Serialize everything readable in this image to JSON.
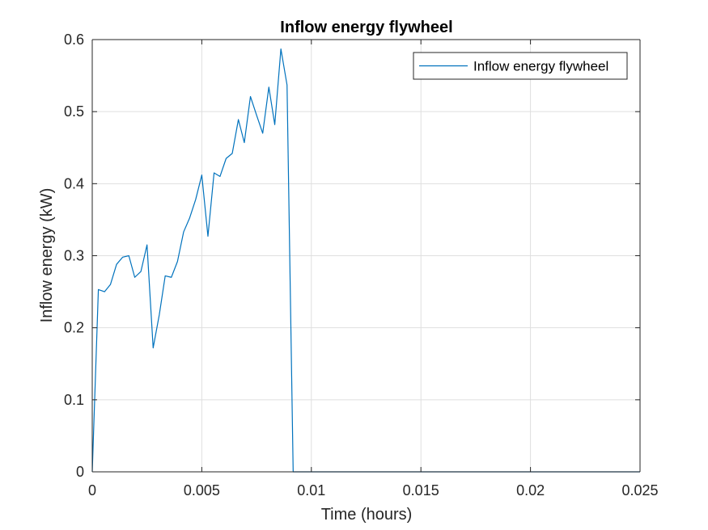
{
  "chart_data": {
    "type": "line",
    "title": "Inflow energy flywheel",
    "xlabel": "Time (hours)",
    "ylabel": "Inflow energy (kW)",
    "xlim": [
      0,
      0.025
    ],
    "ylim": [
      0,
      0.6
    ],
    "xticks": [
      0,
      0.005,
      0.01,
      0.015,
      0.02,
      0.025
    ],
    "xtick_labels": [
      "0",
      "0.005",
      "0.01",
      "0.015",
      "0.02",
      "0.025"
    ],
    "yticks": [
      0,
      0.1,
      0.2,
      0.3,
      0.4,
      0.5,
      0.6
    ],
    "ytick_labels": [
      "0",
      "0.1",
      "0.2",
      "0.3",
      "0.4",
      "0.5",
      "0.6"
    ],
    "grid": true,
    "legend_position": "top-right",
    "series_color": "#0072BD",
    "series": [
      {
        "name": "Inflow energy flywheel",
        "x": [
          0,
          0.00028,
          0.00056,
          0.00083,
          0.00111,
          0.00139,
          0.00167,
          0.00194,
          0.00222,
          0.0025,
          0.00278,
          0.00306,
          0.00333,
          0.00361,
          0.00389,
          0.00417,
          0.00444,
          0.00472,
          0.005,
          0.00528,
          0.00556,
          0.00583,
          0.00611,
          0.00639,
          0.00667,
          0.00694,
          0.00722,
          0.0075,
          0.00778,
          0.00806,
          0.00833,
          0.00861,
          0.00889,
          0.00917,
          0.0095,
          0.01,
          0.015,
          0.02,
          0.025
        ],
        "y": [
          0,
          0.253,
          0.25,
          0.26,
          0.288,
          0.298,
          0.3,
          0.27,
          0.278,
          0.315,
          0.172,
          0.218,
          0.272,
          0.27,
          0.292,
          0.333,
          0.352,
          0.378,
          0.412,
          0.327,
          0.415,
          0.41,
          0.435,
          0.442,
          0.489,
          0.457,
          0.521,
          0.495,
          0.47,
          0.534,
          0.482,
          0.587,
          0.537,
          0,
          0,
          0,
          0,
          0,
          0
        ]
      }
    ]
  }
}
